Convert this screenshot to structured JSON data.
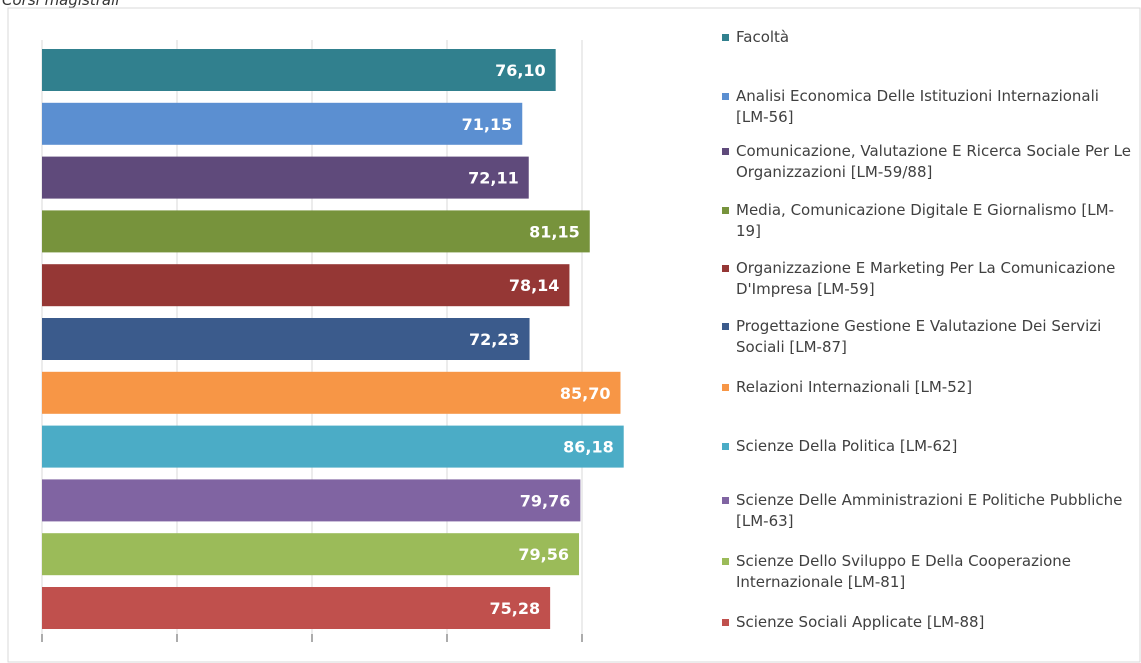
{
  "chart_data": {
    "type": "barh",
    "title": "Corsi magistrali",
    "categories": [
      "Facoltà",
      "Analisi Economica Delle Istituzioni Internazionali [LM-56]",
      "Comunicazione, Valutazione E Ricerca Sociale Per Le Organizzazioni [LM-59/88]",
      "Media, Comunicazione Digitale E Giornalismo [LM-19]",
      "Organizzazione E Marketing Per La Comunicazione D'Impresa [LM-59]",
      "Progettazione Gestione E Valutazione Dei Servizi Sociali [LM-87]",
      "Relazioni Internazionali [LM-52]",
      "Scienze Della Politica [LM-62]",
      "Scienze Delle Amministrazioni E Politiche Pubbliche [LM-63]",
      "Scienze Dello Sviluppo E Della Cooperazione Internazionale [LM-81]",
      "Scienze Sociali Applicate [LM-88]"
    ],
    "values": [
      76.1,
      71.15,
      72.11,
      81.15,
      78.14,
      72.23,
      85.7,
      86.18,
      79.76,
      79.56,
      75.28
    ],
    "value_labels": [
      "76,10",
      "71,15",
      "72,11",
      "81,15",
      "78,14",
      "72,23",
      "85,70",
      "86,18",
      "79,76",
      "79,56",
      "75,28"
    ],
    "colors": [
      "#31808e",
      "#5b8fd1",
      "#5f4a7b",
      "#77933c",
      "#953735",
      "#3b5b8c",
      "#f79646",
      "#4bacc6",
      "#8064a2",
      "#9bbb59",
      "#c0504d"
    ],
    "xlim": [
      0,
      100
    ],
    "xticks": [
      0,
      20,
      40,
      60,
      80
    ],
    "grid": true
  }
}
